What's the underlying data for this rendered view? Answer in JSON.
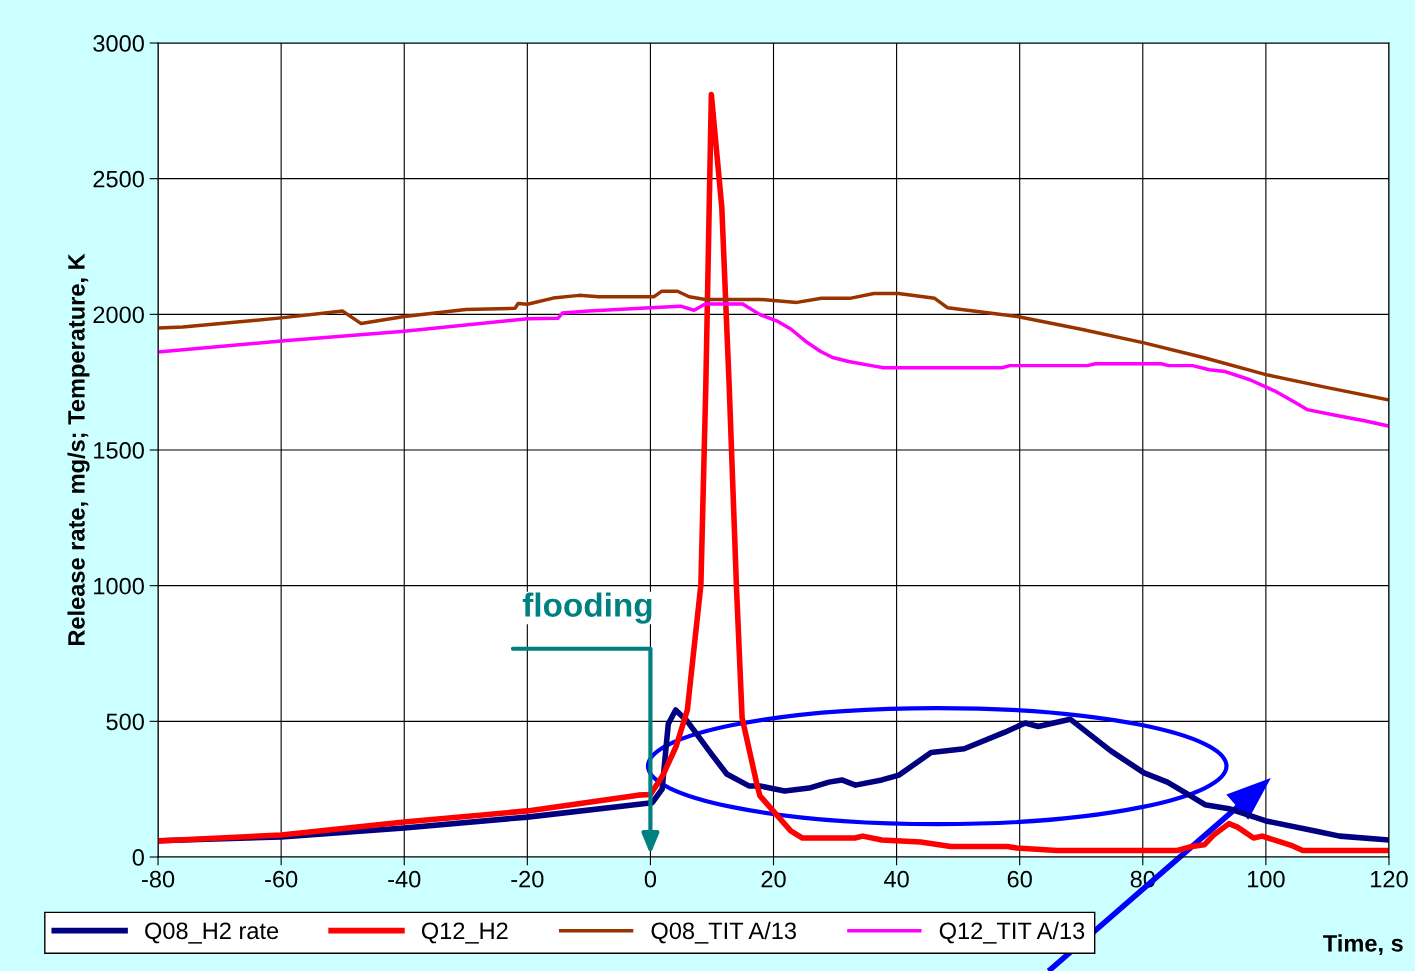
{
  "chart_data": {
    "type": "line",
    "xlabel": "Time, s",
    "ylabel": "Release rate, mg/s; Temperature, K",
    "xlim": [
      -80,
      120
    ],
    "xticks": [
      -80,
      -60,
      -40,
      -20,
      0,
      20,
      40,
      60,
      80,
      100,
      120
    ],
    "ylim": [
      0,
      3000
    ],
    "yticks": [
      0,
      500,
      1000,
      1500,
      2000,
      2500,
      3000
    ],
    "grid": true,
    "legend": "bottom",
    "marker": "none",
    "line_style": "solid",
    "annotations": [
      "flooding"
    ],
    "series": [
      {
        "name": "Q08_H2 rate",
        "color": "#000080",
        "x": [
          -80,
          -60,
          -40,
          -20,
          -1.5,
          0.3,
          1.9,
          2.9,
          4.1,
          6,
          9.9,
          12.4,
          16,
          17.8,
          21.8,
          25.8,
          29,
          31.1,
          33.3,
          37.6,
          40.4,
          45.6,
          51,
          57.6,
          60.9,
          63,
          68.2,
          74.8,
          80.2,
          84,
          87.3,
          90.1,
          94,
          100,
          108,
          112,
          120
        ],
        "values": [
          60,
          74,
          107,
          147,
          195,
          200,
          250,
          490,
          542,
          500,
          380,
          306,
          262,
          262,
          243,
          254,
          276,
          284,
          265,
          284,
          302,
          385,
          399,
          460,
          494,
          481,
          508,
          391,
          310,
          276,
          232,
          193,
          178,
          133,
          96,
          77,
          63
        ]
      },
      {
        "name": "Q12_H2",
        "color": "#ff0000",
        "x": [
          -80,
          -60,
          -40,
          -20,
          -2,
          0,
          2,
          4.2,
          6,
          8.2,
          9,
          9.9,
          11.6,
          12.8,
          14,
          14.9,
          17.3,
          17.8,
          22.8,
          24.7,
          33.2,
          34.5,
          37.6,
          43.9,
          48.8,
          58,
          59.5,
          66,
          85.6,
          88,
          90,
          91.5,
          94,
          95.4,
          98,
          99.4,
          104,
          106,
          120
        ],
        "values": [
          59,
          81,
          129,
          170,
          228,
          230,
          300,
          409,
          542,
          1003,
          1736,
          2810,
          2394,
          1736,
          985,
          513,
          268,
          225,
          96,
          70,
          70,
          77,
          63,
          55,
          39,
          39,
          33,
          24,
          24,
          39,
          45,
          81,
          123,
          110,
          70,
          77,
          44,
          24,
          24
        ]
      },
      {
        "name": "Q08_TIT A/13",
        "color": "#993300",
        "x": [
          -80,
          -76,
          -60,
          -50,
          -47,
          -40,
          -30,
          -22,
          -21.5,
          -20,
          -15.8,
          -11.6,
          -8.4,
          0.6,
          1.8,
          4.4,
          6.3,
          8.9,
          17.8,
          23.8,
          27.8,
          32.4,
          36.3,
          40.3,
          46.2,
          48.3,
          59.6,
          70,
          80.2,
          90,
          100,
          110,
          120
        ],
        "values": [
          1950,
          1953,
          1987,
          2012,
          1966,
          1992,
          2018,
          2022,
          2040,
          2037,
          2060,
          2070,
          2065,
          2065,
          2085,
          2085,
          2065,
          2055,
          2055,
          2044,
          2059,
          2059,
          2077,
          2077,
          2059,
          2024,
          1992,
          1945,
          1895,
          1840,
          1778,
          1730,
          1684
        ]
      },
      {
        "name": "Q12_TIT A/13",
        "color": "#ff00ff",
        "x": [
          -80,
          -60,
          -40,
          -20,
          -15,
          -14.3,
          -10,
          0,
          4.9,
          7.1,
          8.9,
          15,
          17.8,
          20.5,
          22.8,
          25.2,
          27.6,
          29.6,
          32.2,
          35.9,
          37.9,
          57.1,
          58.4,
          71,
          72.3,
          83,
          84.2,
          88.1,
          90.8,
          93.4,
          97.4,
          101.4,
          104.7,
          106.7,
          111.3,
          116,
          120
        ],
        "values": [
          1861,
          1902,
          1938,
          1984,
          1986,
          2005,
          2012,
          2024,
          2030,
          2015,
          2038,
          2038,
          1999,
          1976,
          1946,
          1901,
          1864,
          1841,
          1826,
          1811,
          1803,
          1803,
          1811,
          1811,
          1818,
          1818,
          1811,
          1811,
          1796,
          1789,
          1759,
          1718,
          1676,
          1649,
          1628,
          1608,
          1588
        ]
      }
    ]
  }
}
